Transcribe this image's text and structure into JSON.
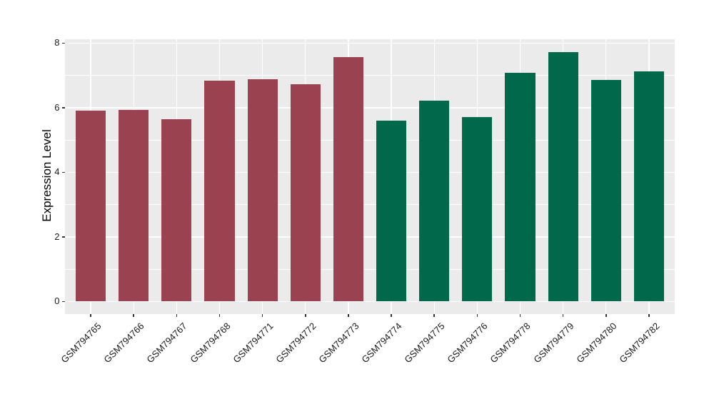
{
  "chart_data": {
    "type": "bar",
    "title": "",
    "xlabel": "",
    "ylabel": "Expression Level",
    "categories": [
      "GSM794765",
      "GSM794766",
      "GSM794767",
      "GSM794768",
      "GSM794771",
      "GSM794772",
      "GSM794773",
      "GSM794774",
      "GSM794775",
      "GSM794776",
      "GSM794778",
      "GSM794779",
      "GSM794780",
      "GSM794782"
    ],
    "values": [
      5.9,
      5.93,
      5.65,
      6.84,
      6.89,
      6.73,
      7.57,
      5.6,
      6.21,
      5.71,
      7.08,
      7.72,
      6.86,
      7.12
    ],
    "bar_colors": [
      "#9A4250",
      "#9A4250",
      "#9A4250",
      "#9A4250",
      "#9A4250",
      "#9A4250",
      "#9A4250",
      "#00694B",
      "#00694B",
      "#00694B",
      "#00694B",
      "#00694B",
      "#00694B",
      "#00694B"
    ],
    "group_colors": {
      "left_group": "#9A4250",
      "right_group": "#00694B"
    },
    "yticks_major": [
      0,
      2,
      4,
      6,
      8
    ],
    "yticks_minor": [
      1,
      3,
      5,
      7
    ],
    "ylim": [
      -0.39,
      8.12
    ],
    "grid": true,
    "legend": false,
    "plot_bg": "#EBEBEB",
    "grid_color": "#FFFFFF"
  }
}
